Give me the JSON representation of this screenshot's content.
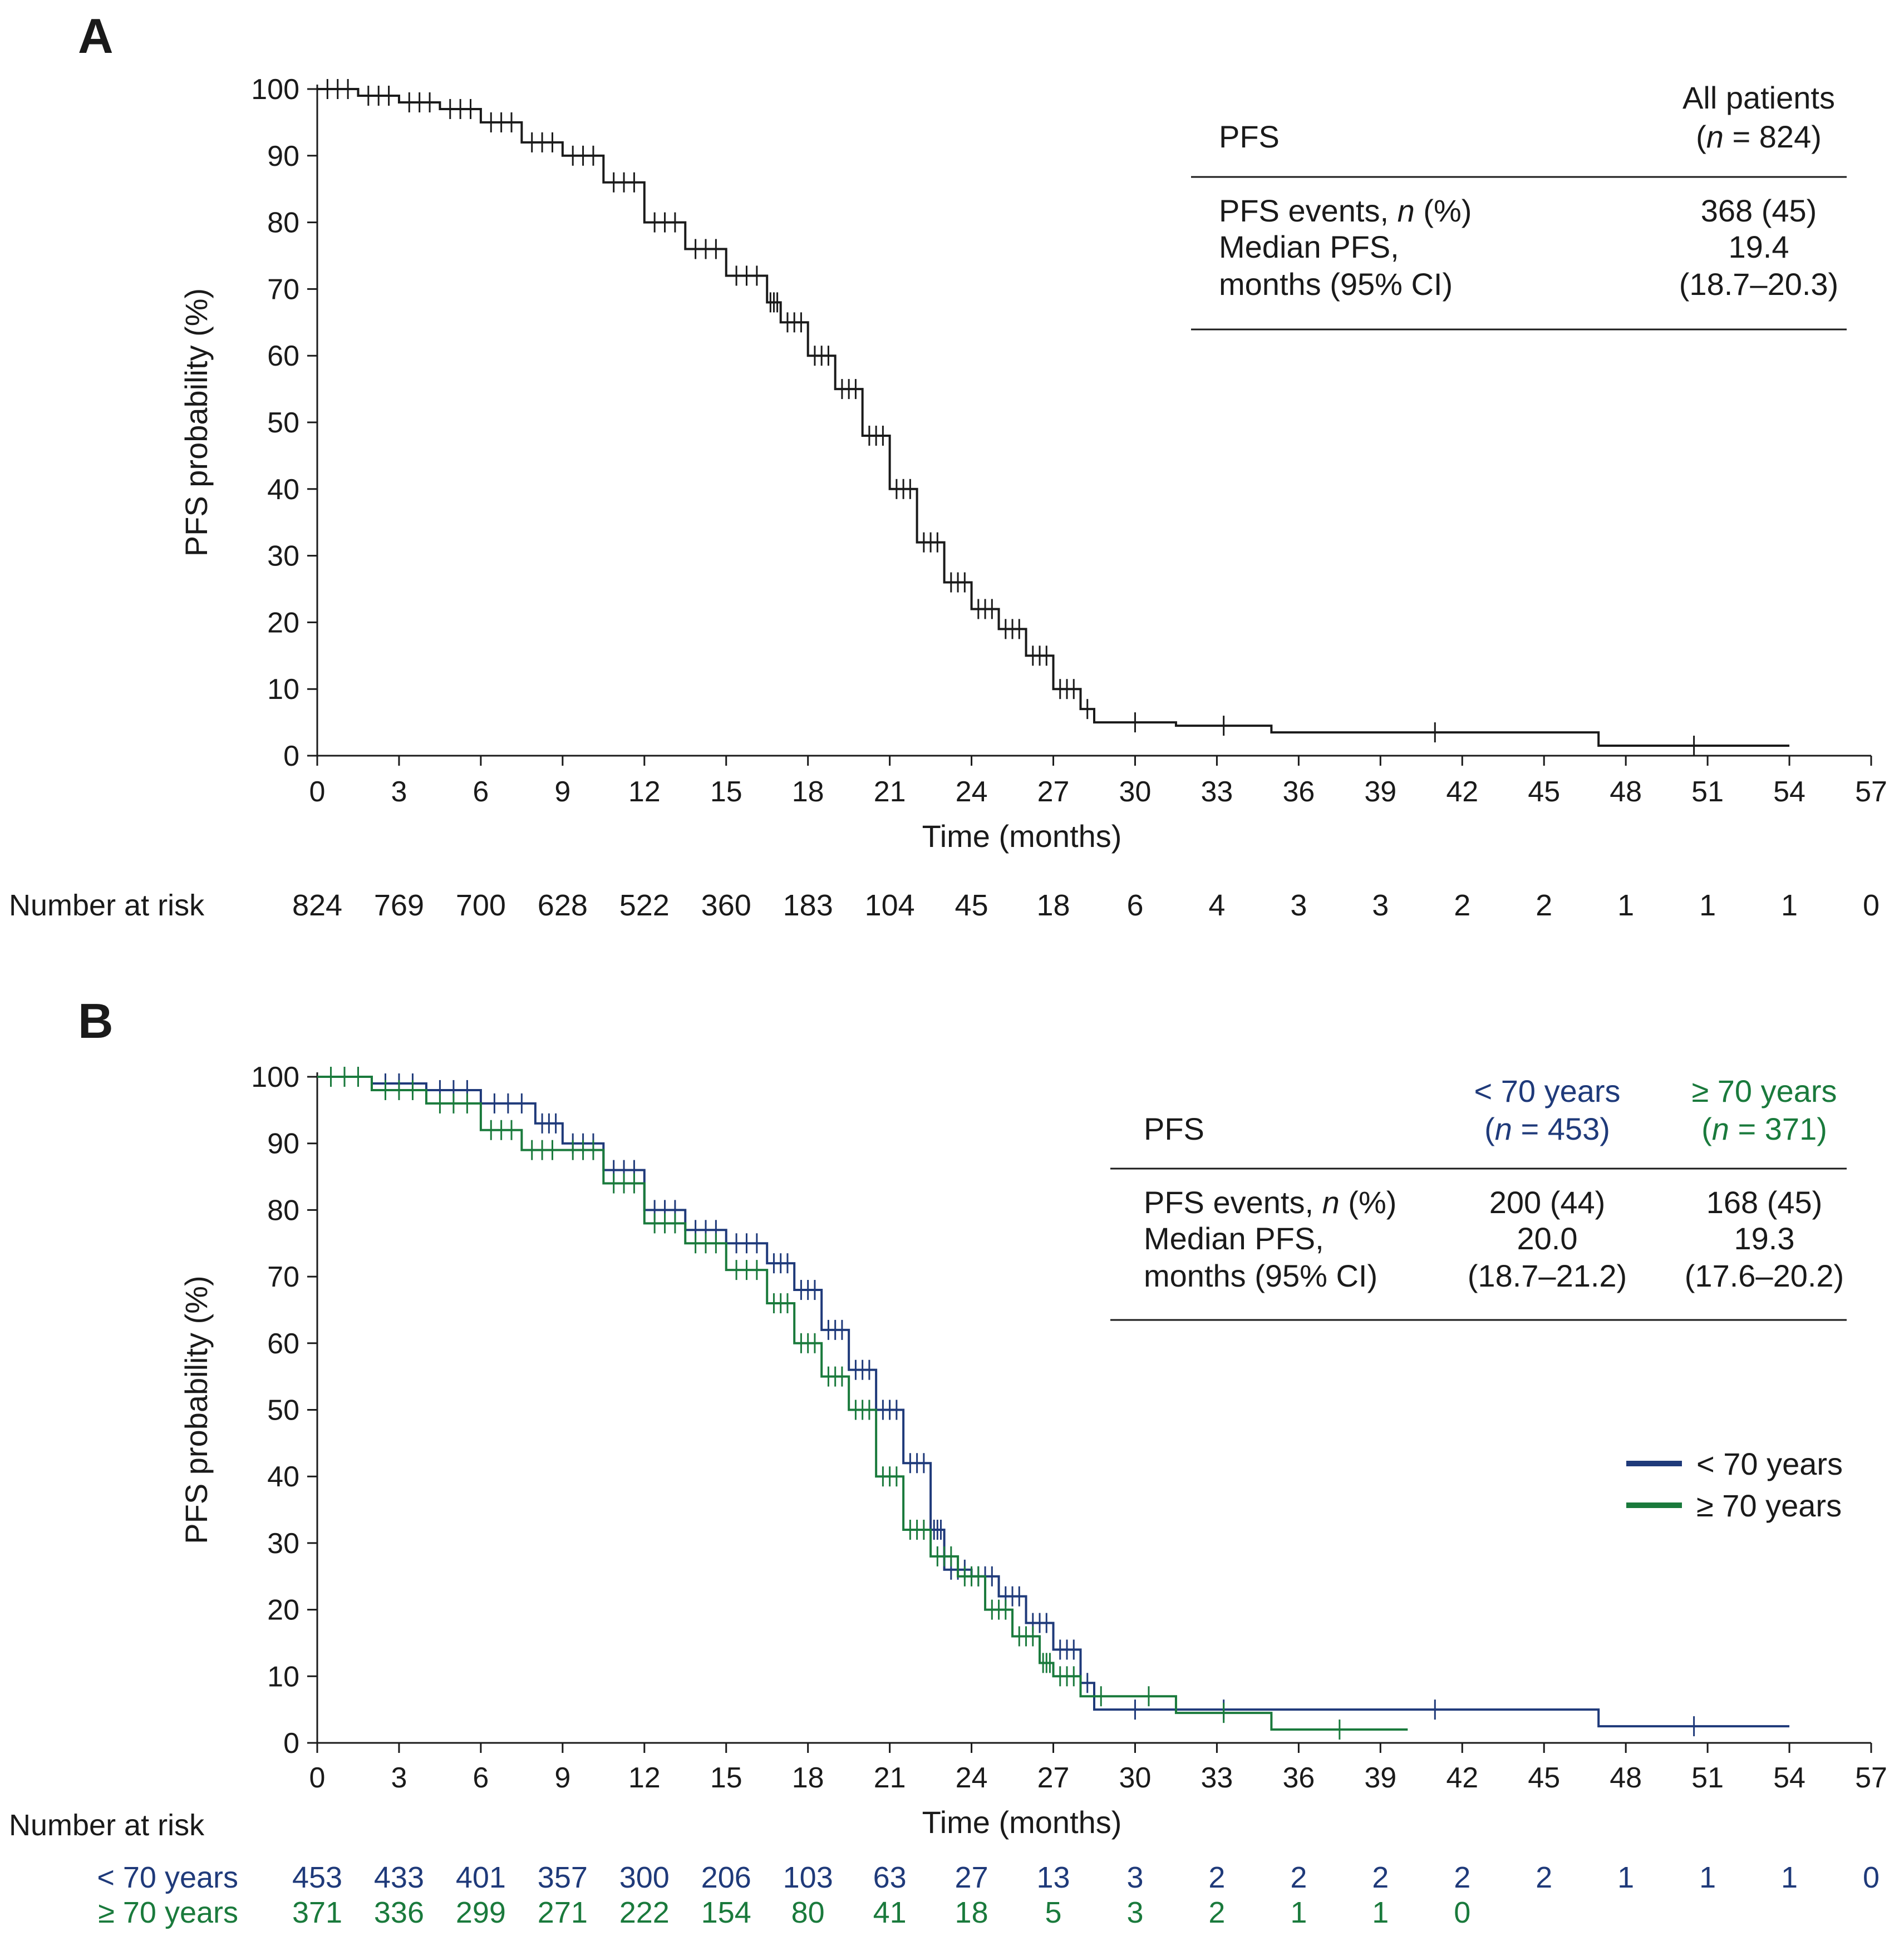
{
  "colors": {
    "black": "#1a1a1a",
    "blue": "#1f3a7a",
    "green": "#1a7a3c",
    "gray": "#777777"
  },
  "chart_data": [
    {
      "type": "line",
      "subtype": "kaplan-meier",
      "panel": "A",
      "xlabel": "Time (months)",
      "ylabel": "PFS probability (%)",
      "xlim": [
        0,
        57
      ],
      "ylim": [
        0,
        100
      ],
      "xticks": [
        "0",
        "3",
        "6",
        "9",
        "12",
        "15",
        "18",
        "21",
        "24",
        "27",
        "30",
        "33",
        "36",
        "39",
        "42",
        "45",
        "48",
        "51",
        "54",
        "57"
      ],
      "yticks": [
        "0",
        "10",
        "20",
        "30",
        "40",
        "50",
        "60",
        "70",
        "80",
        "90",
        "100"
      ],
      "series": [
        {
          "name": "All patients",
          "color": "#1a1a1a",
          "x": [
            0,
            1.5,
            3,
            4.5,
            6,
            7.5,
            9,
            10.5,
            12,
            13.5,
            15,
            16.5,
            17,
            18,
            19,
            20,
            21,
            22,
            23,
            24,
            25,
            26,
            27,
            28,
            28.5,
            31.5,
            35,
            47,
            54
          ],
          "y": [
            100,
            99,
            98,
            97,
            95,
            92,
            90,
            86,
            80,
            76,
            72,
            68,
            65,
            60,
            55,
            48,
            40,
            32,
            26,
            22,
            19,
            15,
            10,
            7,
            5,
            4.5,
            3.5,
            1.5,
            1.5
          ]
        }
      ],
      "stats_table": {
        "header_label": "PFS",
        "columns": [
          {
            "line1": "All patients",
            "n_prefix": "(",
            "n_italic": "n",
            "n_suffix": " = 824)"
          }
        ],
        "rows": [
          {
            "label_pre": "PFS events, ",
            "label_italic": "n",
            "label_post": " (%)",
            "values": [
              "368 (45)"
            ]
          },
          {
            "label_pre": "Median PFS,",
            "label_italic": "",
            "label_post": "",
            "values": [
              "19.4"
            ]
          },
          {
            "label_pre": "months (95% CI)",
            "label_italic": "",
            "label_post": "",
            "values": [
              "(18.7–20.3)"
            ]
          }
        ]
      },
      "number_at_risk": {
        "title": "Number at risk",
        "rows": [
          {
            "label": "",
            "values": [
              "824",
              "769",
              "700",
              "628",
              "522",
              "360",
              "183",
              "104",
              "45",
              "18",
              "6",
              "4",
              "3",
              "3",
              "2",
              "2",
              "1",
              "1",
              "1",
              "0"
            ]
          }
        ]
      }
    },
    {
      "type": "line",
      "subtype": "kaplan-meier",
      "panel": "B",
      "xlabel": "Time (months)",
      "ylabel": "PFS probability (%)",
      "xlim": [
        0,
        57
      ],
      "ylim": [
        0,
        100
      ],
      "xticks": [
        "0",
        "3",
        "6",
        "9",
        "12",
        "15",
        "18",
        "21",
        "24",
        "27",
        "30",
        "33",
        "36",
        "39",
        "42",
        "45",
        "48",
        "51",
        "54",
        "57"
      ],
      "yticks": [
        "0",
        "10",
        "20",
        "30",
        "40",
        "50",
        "60",
        "70",
        "80",
        "90",
        "100"
      ],
      "legend_position": "right",
      "series": [
        {
          "name": "< 70 years",
          "color": "#1f3a7a",
          "x": [
            0,
            2,
            4,
            6,
            8,
            9,
            10.5,
            12,
            13.5,
            15,
            16.5,
            17.5,
            18.5,
            19.5,
            20.5,
            21.5,
            22.5,
            23,
            24,
            25,
            26,
            27,
            28,
            28.5,
            31.5,
            35,
            47,
            54
          ],
          "y": [
            100,
            99,
            98,
            96,
            93,
            90,
            86,
            80,
            77,
            75,
            72,
            68,
            62,
            56,
            50,
            42,
            32,
            26,
            25,
            22,
            18,
            14,
            9,
            5,
            5,
            5,
            2.5,
            2.5
          ]
        },
        {
          "name": "≥ 70 years",
          "color": "#1a7a3c",
          "x": [
            0,
            2,
            4,
            6,
            7.5,
            9,
            10.5,
            12,
            13.5,
            15,
            16.5,
            17.5,
            18.5,
            19.5,
            20.5,
            21.5,
            22.5,
            23.5,
            24.5,
            25.5,
            26.5,
            27,
            28,
            29.5,
            31.5,
            35,
            40
          ],
          "y": [
            100,
            98,
            96,
            92,
            89,
            89,
            84,
            78,
            75,
            71,
            66,
            60,
            55,
            50,
            40,
            32,
            28,
            25,
            20,
            16,
            12,
            10,
            7,
            7,
            4.5,
            2,
            2
          ]
        }
      ],
      "stats_table": {
        "header_label": "PFS",
        "columns": [
          {
            "line1": "< 70 years",
            "n_prefix": "(",
            "n_italic": "n",
            "n_suffix": " = 453)",
            "color": "#1f3a7a"
          },
          {
            "line1": "≥ 70 years",
            "n_prefix": "(",
            "n_italic": "n",
            "n_suffix": " = 371)",
            "color": "#1a7a3c"
          }
        ],
        "rows": [
          {
            "label_pre": "PFS events, ",
            "label_italic": "n",
            "label_post": " (%)",
            "values": [
              "200 (44)",
              "168 (45)"
            ]
          },
          {
            "label_pre": "Median PFS,",
            "label_italic": "",
            "label_post": "",
            "values": [
              "20.0",
              "19.3"
            ]
          },
          {
            "label_pre": "months (95% CI)",
            "label_italic": "",
            "label_post": "",
            "values": [
              "(18.7–21.2)",
              "(17.6–20.2)"
            ]
          }
        ]
      },
      "number_at_risk": {
        "title": "Number at risk",
        "rows": [
          {
            "label": "< 70 years",
            "color": "#1f3a7a",
            "values": [
              "453",
              "433",
              "401",
              "357",
              "300",
              "206",
              "103",
              "63",
              "27",
              "13",
              "3",
              "2",
              "2",
              "2",
              "2",
              "2",
              "1",
              "1",
              "1",
              "0"
            ]
          },
          {
            "label": "≥ 70 years",
            "color": "#1a7a3c",
            "values": [
              "371",
              "336",
              "299",
              "271",
              "222",
              "154",
              "80",
              "41",
              "18",
              "5",
              "3",
              "2",
              "1",
              "1",
              "0"
            ]
          }
        ]
      }
    }
  ]
}
